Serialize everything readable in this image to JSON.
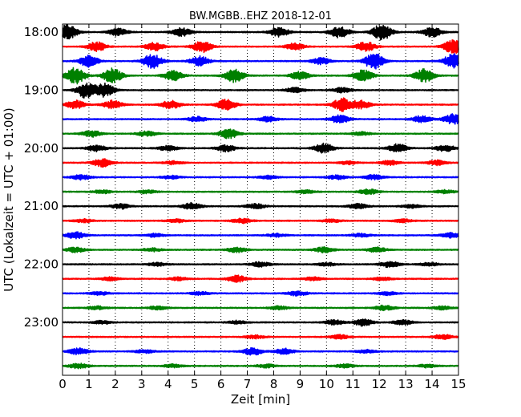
{
  "chart_data": {
    "type": "line",
    "title": "BW.MGBB..EHZ 2018-12-01",
    "xlabel": "Zeit  [min]",
    "ylabel": "UTC (Lokalzeit = UTC + 01:00)",
    "xlim": [
      0,
      15
    ],
    "x_ticks": [
      0,
      1,
      2,
      3,
      4,
      5,
      6,
      7,
      8,
      9,
      10,
      11,
      12,
      13,
      14,
      15
    ],
    "x_tick_labels": [
      "0",
      "1",
      "2",
      "3",
      "4",
      "5",
      "6",
      "7",
      "8",
      "9",
      "10",
      "11",
      "12",
      "13",
      "14",
      "15"
    ],
    "y_tick_labels": [
      "18:00",
      "19:00",
      "20:00",
      "21:00",
      "22:00",
      "23:00"
    ],
    "grid": "vertical dotted",
    "trace_interval_minutes": 15,
    "trace_colors": [
      "#000000",
      "#ff0000",
      "#0000ff",
      "#008000"
    ],
    "series": [
      {
        "time": "18:00",
        "color": "#000000",
        "peak_amplitude": 1.0,
        "bursts": [
          [
            0.2,
            0.9
          ],
          [
            2.1,
            0.45
          ],
          [
            4.5,
            0.5
          ],
          [
            8.2,
            0.6
          ],
          [
            10.5,
            0.7
          ],
          [
            12.1,
            1.0
          ],
          [
            14.0,
            0.6
          ]
        ]
      },
      {
        "time": "18:15",
        "color": "#ff0000",
        "peak_amplitude": 0.9,
        "bursts": [
          [
            1.3,
            0.6
          ],
          [
            3.5,
            0.5
          ],
          [
            5.3,
            0.7
          ],
          [
            8.8,
            0.4
          ],
          [
            11.5,
            0.6
          ],
          [
            14.8,
            0.9
          ]
        ]
      },
      {
        "time": "18:30",
        "color": "#0000ff",
        "peak_amplitude": 1.0,
        "bursts": [
          [
            1.0,
            0.7
          ],
          [
            3.4,
            0.9
          ],
          [
            5.2,
            0.6
          ],
          [
            9.8,
            0.4
          ],
          [
            11.8,
            1.0
          ],
          [
            14.8,
            0.9
          ]
        ]
      },
      {
        "time": "18:45",
        "color": "#008000",
        "peak_amplitude": 1.0,
        "bursts": [
          [
            0.5,
            1.0
          ],
          [
            1.9,
            0.9
          ],
          [
            4.2,
            0.6
          ],
          [
            6.5,
            0.8
          ],
          [
            9.0,
            0.5
          ],
          [
            11.4,
            0.7
          ],
          [
            13.7,
            0.8
          ]
        ]
      },
      {
        "time": "19:00",
        "color": "#000000",
        "peak_amplitude": 1.0,
        "bursts": [
          [
            0.9,
            1.0
          ],
          [
            1.6,
            0.8
          ],
          [
            8.8,
            0.3
          ],
          [
            10.6,
            0.3
          ]
        ]
      },
      {
        "time": "19:15",
        "color": "#ff0000",
        "peak_amplitude": 0.8,
        "bursts": [
          [
            0.5,
            0.5
          ],
          [
            1.9,
            0.5
          ],
          [
            4.1,
            0.5
          ],
          [
            6.2,
            0.7
          ],
          [
            10.6,
            0.8
          ],
          [
            11.3,
            0.5
          ]
        ]
      },
      {
        "time": "19:30",
        "color": "#0000ff",
        "peak_amplitude": 0.6,
        "bursts": [
          [
            5.1,
            0.3
          ],
          [
            7.8,
            0.3
          ],
          [
            10.5,
            0.5
          ],
          [
            13.6,
            0.4
          ],
          [
            14.8,
            0.6
          ]
        ]
      },
      {
        "time": "19:45",
        "color": "#008000",
        "peak_amplitude": 0.6,
        "bursts": [
          [
            1.1,
            0.4
          ],
          [
            3.2,
            0.3
          ],
          [
            6.3,
            0.6
          ],
          [
            11.3,
            0.2
          ]
        ]
      },
      {
        "time": "20:00",
        "color": "#000000",
        "peak_amplitude": 0.6,
        "bursts": [
          [
            1.3,
            0.4
          ],
          [
            4.0,
            0.3
          ],
          [
            6.2,
            0.4
          ],
          [
            9.9,
            0.6
          ],
          [
            12.7,
            0.5
          ],
          [
            14.5,
            0.4
          ]
        ]
      },
      {
        "time": "20:15",
        "color": "#ff0000",
        "peak_amplitude": 0.5,
        "bursts": [
          [
            1.5,
            0.5
          ],
          [
            4.2,
            0.2
          ],
          [
            10.8,
            0.2
          ],
          [
            12.4,
            0.3
          ],
          [
            14.2,
            0.3
          ]
        ]
      },
      {
        "time": "20:30",
        "color": "#0000ff",
        "peak_amplitude": 0.35,
        "bursts": [
          [
            0.7,
            0.3
          ],
          [
            4.1,
            0.2
          ],
          [
            7.8,
            0.2
          ],
          [
            10.4,
            0.25
          ],
          [
            11.8,
            0.3
          ]
        ]
      },
      {
        "time": "20:45",
        "color": "#008000",
        "peak_amplitude": 0.3,
        "bursts": [
          [
            1.5,
            0.2
          ],
          [
            3.2,
            0.2
          ],
          [
            9.2,
            0.2
          ],
          [
            11.6,
            0.3
          ],
          [
            14.5,
            0.2
          ]
        ]
      },
      {
        "time": "21:00",
        "color": "#000000",
        "peak_amplitude": 0.4,
        "bursts": [
          [
            2.2,
            0.3
          ],
          [
            4.9,
            0.4
          ],
          [
            7.3,
            0.3
          ],
          [
            11.2,
            0.3
          ],
          [
            13.2,
            0.2
          ]
        ]
      },
      {
        "time": "21:15",
        "color": "#ff0000",
        "peak_amplitude": 0.3,
        "bursts": [
          [
            0.8,
            0.2
          ],
          [
            4.3,
            0.2
          ],
          [
            6.8,
            0.3
          ],
          [
            10.2,
            0.2
          ],
          [
            12.9,
            0.2
          ]
        ]
      },
      {
        "time": "21:30",
        "color": "#0000ff",
        "peak_amplitude": 0.4,
        "bursts": [
          [
            0.5,
            0.4
          ],
          [
            3.5,
            0.2
          ],
          [
            8.1,
            0.2
          ],
          [
            11.3,
            0.2
          ],
          [
            14.7,
            0.3
          ]
        ]
      },
      {
        "time": "21:45",
        "color": "#008000",
        "peak_amplitude": 0.35,
        "bursts": [
          [
            0.5,
            0.3
          ],
          [
            3.4,
            0.2
          ],
          [
            6.6,
            0.3
          ],
          [
            9.9,
            0.35
          ],
          [
            11.9,
            0.3
          ]
        ]
      },
      {
        "time": "22:00",
        "color": "#000000",
        "peak_amplitude": 0.35,
        "bursts": [
          [
            3.6,
            0.2
          ],
          [
            7.5,
            0.3
          ],
          [
            10.0,
            0.2
          ],
          [
            12.4,
            0.35
          ],
          [
            13.9,
            0.2
          ]
        ]
      },
      {
        "time": "22:15",
        "color": "#ff0000",
        "peak_amplitude": 0.4,
        "bursts": [
          [
            1.8,
            0.2
          ],
          [
            4.4,
            0.2
          ],
          [
            6.6,
            0.4
          ],
          [
            9.5,
            0.2
          ],
          [
            12.1,
            0.2
          ]
        ]
      },
      {
        "time": "22:30",
        "color": "#0000ff",
        "peak_amplitude": 0.3,
        "bursts": [
          [
            1.4,
            0.2
          ],
          [
            5.2,
            0.2
          ],
          [
            8.9,
            0.3
          ],
          [
            12.3,
            0.2
          ]
        ]
      },
      {
        "time": "22:45",
        "color": "#008000",
        "peak_amplitude": 0.3,
        "bursts": [
          [
            1.3,
            0.2
          ],
          [
            3.6,
            0.2
          ],
          [
            8.2,
            0.2
          ],
          [
            12.2,
            0.3
          ],
          [
            14.4,
            0.2
          ]
        ]
      },
      {
        "time": "23:00",
        "color": "#000000",
        "peak_amplitude": 0.45,
        "bursts": [
          [
            1.5,
            0.2
          ],
          [
            6.6,
            0.2
          ],
          [
            10.3,
            0.3
          ],
          [
            11.4,
            0.45
          ],
          [
            12.9,
            0.3
          ]
        ]
      },
      {
        "time": "23:15",
        "color": "#ff0000",
        "peak_amplitude": 0.3,
        "bursts": [
          [
            7.3,
            0.2
          ],
          [
            10.5,
            0.25
          ],
          [
            14.4,
            0.3
          ]
        ]
      },
      {
        "time": "23:30",
        "color": "#0000ff",
        "peak_amplitude": 0.45,
        "bursts": [
          [
            0.6,
            0.4
          ],
          [
            3.1,
            0.2
          ],
          [
            7.2,
            0.45
          ],
          [
            8.4,
            0.35
          ],
          [
            11.5,
            0.2
          ]
        ]
      },
      {
        "time": "23:45",
        "color": "#008000",
        "peak_amplitude": 0.3,
        "bursts": [
          [
            0.6,
            0.3
          ],
          [
            4.2,
            0.2
          ],
          [
            7.7,
            0.2
          ],
          [
            10.7,
            0.2
          ],
          [
            13.8,
            0.2
          ]
        ]
      }
    ]
  }
}
